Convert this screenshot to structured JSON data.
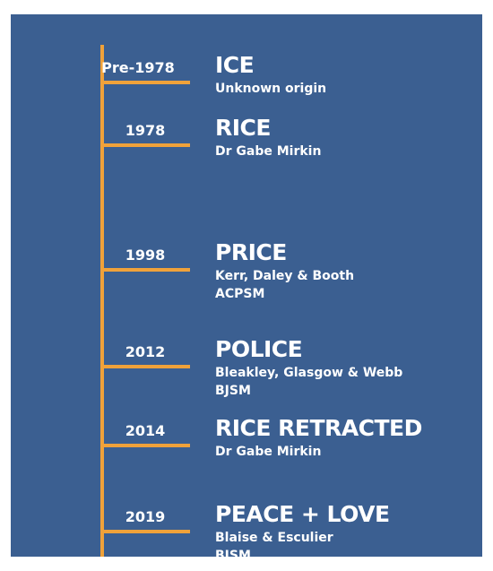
{
  "colors": {
    "background": "#3b5f91",
    "timeline": "#f0a23a",
    "text": "#ffffff"
  },
  "entries": [
    {
      "year": "Pre-1978",
      "title": "ICE",
      "lines": [
        "Unknown origin"
      ]
    },
    {
      "year": "1978",
      "title": "RICE",
      "lines": [
        "Dr Gabe Mirkin"
      ]
    },
    {
      "year": "1998",
      "title": "PRICE",
      "lines": [
        "Kerr, Daley & Booth",
        "ACPSM"
      ]
    },
    {
      "year": "2012",
      "title": "POLICE",
      "lines": [
        "Bleakley, Glasgow & Webb",
        "BJSM"
      ]
    },
    {
      "year": "2014",
      "title": "RICE RETRACTED",
      "lines": [
        "Dr Gabe Mirkin"
      ]
    },
    {
      "year": "2019",
      "title": "PEACE + LOVE",
      "lines": [
        "Blaise & Esculier",
        "BJSM"
      ]
    }
  ]
}
